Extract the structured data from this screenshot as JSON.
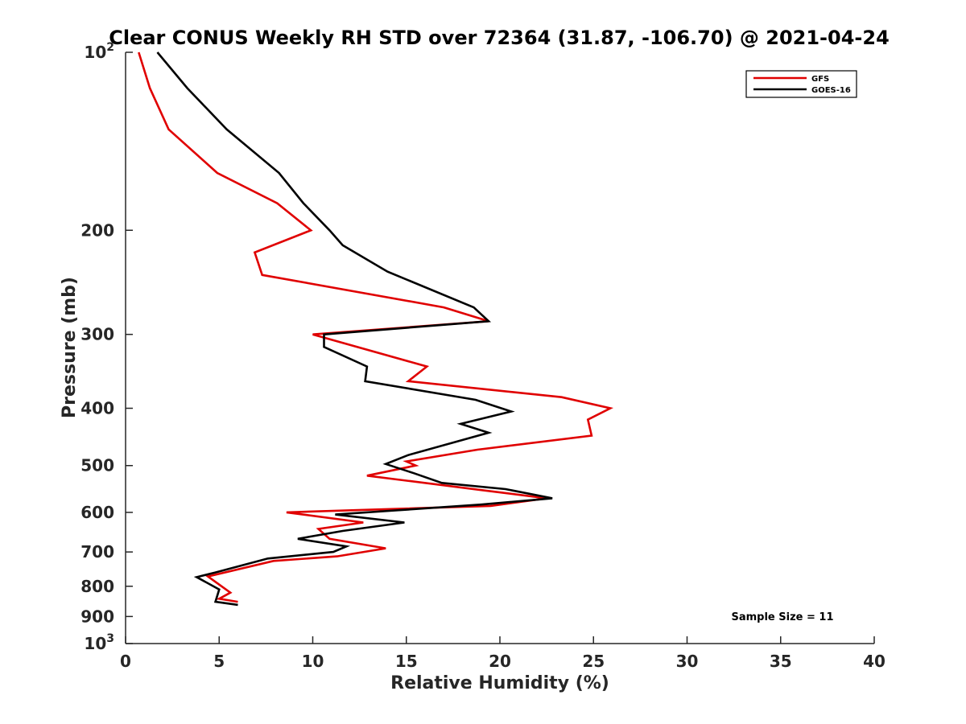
{
  "chart_data": {
    "type": "line",
    "title": "Clear CONUS Weekly RH STD over 72364 (31.87, -106.70) @ 2021-04-24",
    "xlabel": "Relative Humidity (%)",
    "ylabel": "Pressure (mb)",
    "xlim": [
      0,
      40
    ],
    "ylim": [
      100,
      1000
    ],
    "y_scale": "log",
    "y_reversed": true,
    "x_ticks": [
      "0",
      "5",
      "10",
      "15",
      "20",
      "25",
      "30",
      "35",
      "40"
    ],
    "y_ticks": [
      {
        "value": 100,
        "base": "10",
        "exp": "2"
      },
      {
        "value": 200,
        "label": "200"
      },
      {
        "value": 300,
        "label": "300"
      },
      {
        "value": 400,
        "label": "400"
      },
      {
        "value": 500,
        "label": "500"
      },
      {
        "value": 600,
        "label": "600"
      },
      {
        "value": 700,
        "label": "700"
      },
      {
        "value": 800,
        "label": "800"
      },
      {
        "value": 900,
        "label": "900"
      },
      {
        "value": 1000,
        "base": "10",
        "exp": "3"
      }
    ],
    "legend_position": "top-right",
    "annotation": "Sample Size = 11",
    "series": [
      {
        "name": "GFS",
        "color": "#e00000",
        "points": [
          [
            0.7,
            100
          ],
          [
            1.3,
            115
          ],
          [
            2.3,
            135
          ],
          [
            4.9,
            160
          ],
          [
            8.1,
            180
          ],
          [
            9.9,
            200
          ],
          [
            6.9,
            218
          ],
          [
            7.3,
            238
          ],
          [
            17.0,
            270
          ],
          [
            19.4,
            285
          ],
          [
            10.0,
            300
          ],
          [
            16.1,
            340
          ],
          [
            15.1,
            360
          ],
          [
            23.3,
            383
          ],
          [
            25.9,
            400
          ],
          [
            24.7,
            418
          ],
          [
            24.9,
            445
          ],
          [
            18.8,
            470
          ],
          [
            15.0,
            492
          ],
          [
            15.5,
            500
          ],
          [
            12.9,
            520
          ],
          [
            19.0,
            550
          ],
          [
            22.5,
            568
          ],
          [
            19.5,
            585
          ],
          [
            8.6,
            600
          ],
          [
            12.7,
            624
          ],
          [
            10.3,
            640
          ],
          [
            10.9,
            665
          ],
          [
            13.9,
            690
          ],
          [
            11.3,
            712
          ],
          [
            7.9,
            725
          ],
          [
            4.4,
            770
          ],
          [
            5.6,
            820
          ],
          [
            5.0,
            840
          ],
          [
            6.0,
            850
          ]
        ]
      },
      {
        "name": "GOES-16",
        "color": "#000000",
        "points": [
          [
            1.7,
            100
          ],
          [
            3.3,
            115
          ],
          [
            5.4,
            135
          ],
          [
            8.2,
            160
          ],
          [
            9.5,
            180
          ],
          [
            10.9,
            200
          ],
          [
            11.6,
            212
          ],
          [
            14.0,
            235
          ],
          [
            18.6,
            270
          ],
          [
            19.4,
            285
          ],
          [
            10.6,
            300
          ],
          [
            10.6,
            315
          ],
          [
            12.9,
            340
          ],
          [
            12.8,
            360
          ],
          [
            18.7,
            387
          ],
          [
            20.6,
            405
          ],
          [
            17.9,
            425
          ],
          [
            19.4,
            440
          ],
          [
            15.1,
            480
          ],
          [
            13.9,
            497
          ],
          [
            15.4,
            515
          ],
          [
            16.9,
            535
          ],
          [
            20.3,
            548
          ],
          [
            22.8,
            568
          ],
          [
            19.0,
            582
          ],
          [
            11.2,
            605
          ],
          [
            14.9,
            624
          ],
          [
            11.6,
            645
          ],
          [
            9.2,
            665
          ],
          [
            11.8,
            685
          ],
          [
            11.1,
            700
          ],
          [
            7.6,
            718
          ],
          [
            4.8,
            758
          ],
          [
            3.8,
            772
          ],
          [
            5.0,
            810
          ],
          [
            4.8,
            850
          ],
          [
            6.0,
            860
          ]
        ]
      }
    ]
  }
}
